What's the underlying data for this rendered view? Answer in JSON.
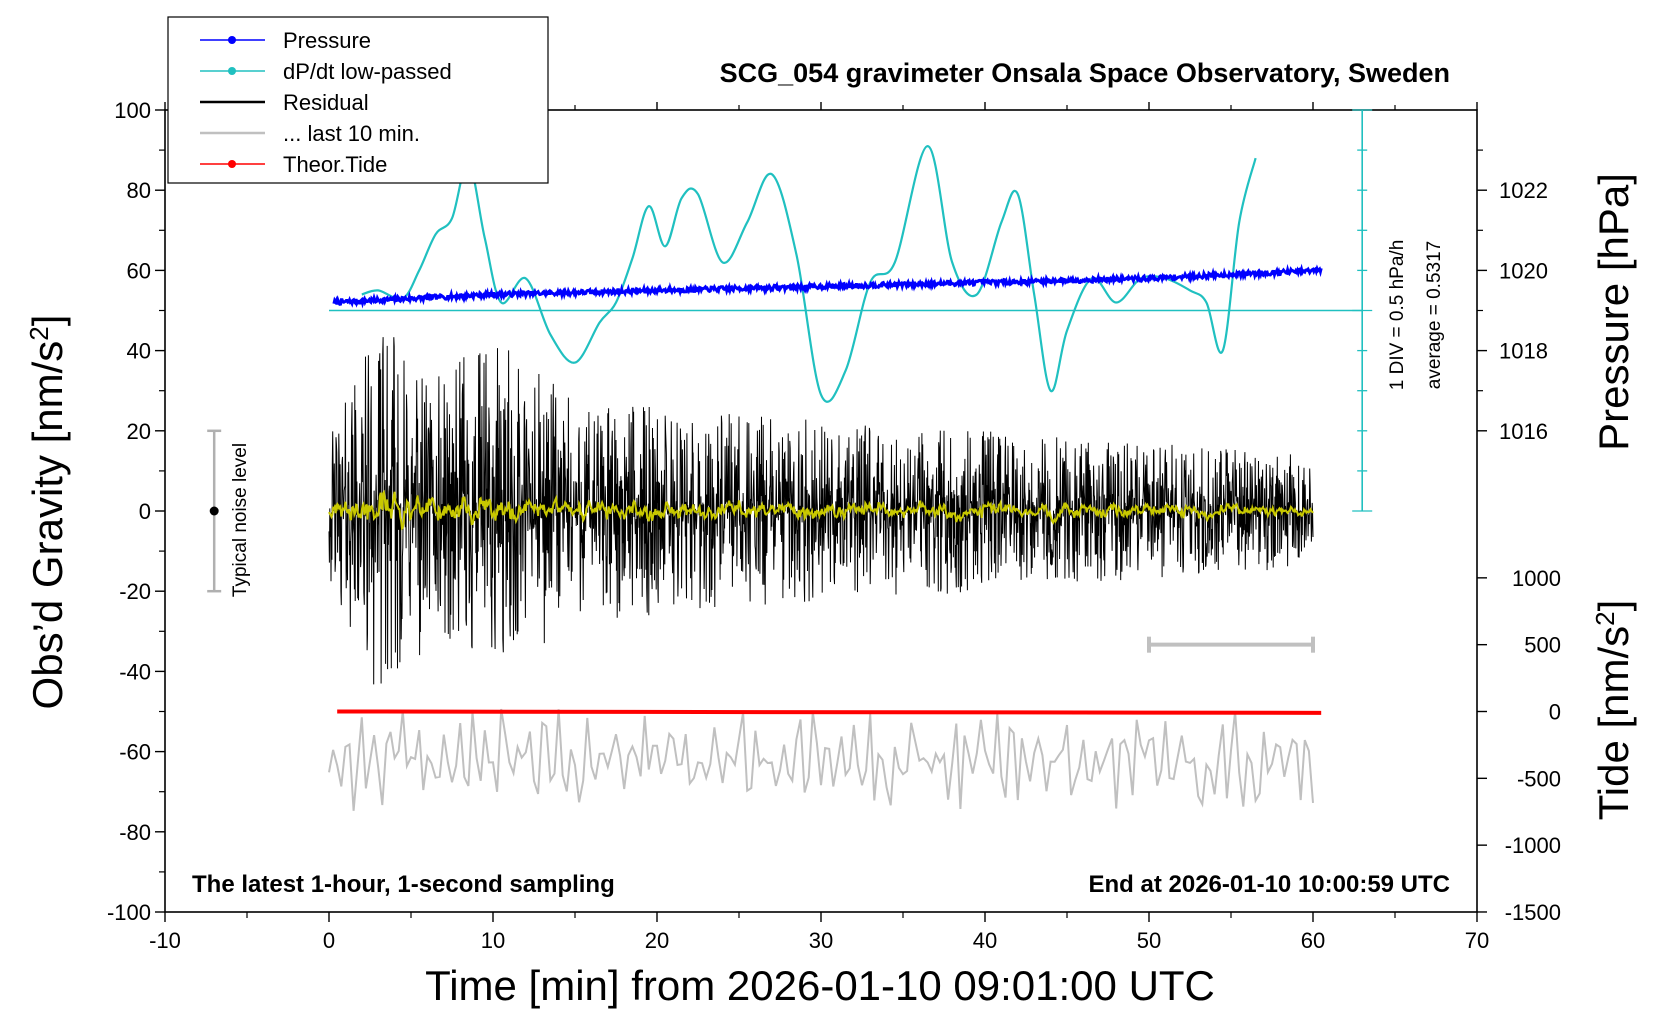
{
  "chart_data": {
    "type": "line",
    "title": "SCG_054 gravimeter Onsala Space Observatory, Sweden",
    "xlabel": "Time [min] from 2026-01-10 09:01:00 UTC",
    "ylabel_main": "Obs’d Gravity [nm/s",
    "ylabel_main_sup": "2",
    "ylabel_main_end": "]",
    "ylabel_pressure": "Pressure [hPa]",
    "ylabel_tide": "Tide [nm/s",
    "ylabel_tide_sup": "2",
    "ylabel_tide_end": "]",
    "xlim": [
      -10,
      70
    ],
    "ylim": [
      -100,
      100
    ],
    "xticks": [
      "-10",
      "0",
      "10",
      "20",
      "30",
      "40",
      "50",
      "60",
      "70"
    ],
    "yticks": [
      "-100",
      "-80",
      "-60",
      "-40",
      "-20",
      "0",
      "20",
      "40",
      "60",
      "80",
      "100"
    ],
    "pressure_axis": {
      "ticks": [
        "1016",
        "1018",
        "1020",
        "1022"
      ],
      "values": [
        1016,
        1018,
        1020,
        1022
      ],
      "gravity_equiv_at_1016": 20,
      "gravity_per_hpa": 10
    },
    "tide_axis": {
      "ticks": [
        "1000",
        "500",
        "0",
        "-500",
        "-1000",
        "-1500"
      ],
      "values": [
        1000,
        500,
        0,
        -500,
        -1000,
        -1500
      ],
      "gravity_equiv_at_0": -50,
      "gravity_per_unit": 0.03333
    },
    "legend": [
      {
        "label": "Pressure",
        "color": "#0000ff",
        "marker": true
      },
      {
        "label": "dP/dt low-passed",
        "color": "#20c0c0",
        "marker": true
      },
      {
        "label": "Residual",
        "color": "#000000",
        "marker": false
      },
      {
        "label": "... last 10 min.",
        "color": "#c0c0c0",
        "marker": false
      },
      {
        "label": "Theor.Tide",
        "color": "#ff0000",
        "marker": true
      }
    ],
    "dpdt_scale_label": "1 DIV = 0.5 hPa/h",
    "dpdt_average_label": "average = 0.5317",
    "dpdt_baseline_gravity": 50,
    "noise_label": "Typical noise level",
    "noise_range": [
      -20,
      20
    ],
    "footnote_left": "The latest 1-hour, 1-second sampling",
    "footnote_right": "End at 2026-01-10 10:00:59 UTC",
    "series": [
      {
        "name": "Pressure",
        "color": "#0000ff",
        "units": "hPa",
        "x": [
          0.3,
          5,
          10,
          15,
          20,
          25,
          30,
          35,
          40,
          45,
          50,
          55,
          60.5
        ],
        "values": [
          1019.2,
          1019.3,
          1019.4,
          1019.45,
          1019.5,
          1019.55,
          1019.6,
          1019.65,
          1019.7,
          1019.75,
          1019.8,
          1019.9,
          1020.0
        ]
      },
      {
        "name": "dP/dt low-passed",
        "color": "#20c0c0",
        "units": "gravity-axis",
        "x": [
          2.0,
          3.0,
          4.5,
          5.5,
          6.5,
          7.5,
          8.5,
          9.5,
          10.5,
          12.0,
          13.5,
          15.0,
          16.5,
          17.5,
          18.5,
          19.5,
          20.5,
          21.5,
          22.5,
          24.0,
          25.5,
          27.0,
          28.5,
          30.0,
          31.5,
          33.0,
          34.5,
          36.5,
          38.0,
          39.5,
          41.0,
          42.0,
          43.0,
          44.0,
          45.0,
          46.5,
          48.0,
          49.5,
          51.0,
          52.5,
          53.5,
          54.5,
          55.5,
          56.5
        ],
        "values": [
          54,
          55,
          53,
          60,
          69,
          73,
          87,
          68,
          52,
          58,
          44,
          37,
          47,
          52,
          63,
          76,
          66,
          78,
          79,
          62,
          72,
          84,
          64,
          29,
          35,
          57,
          62,
          91,
          62,
          54,
          72,
          79,
          54,
          30,
          45,
          58,
          52,
          58,
          58,
          55,
          52,
          40,
          72,
          88
        ]
      },
      {
        "name": "Residual",
        "color": "#000000",
        "x_start": 0,
        "x_end": 60,
        "envelope": [
          [
            0,
            18
          ],
          [
            3,
            48
          ],
          [
            6,
            35
          ],
          [
            10.5,
            42
          ],
          [
            15,
            28
          ],
          [
            25,
            24
          ],
          [
            40,
            20
          ],
          [
            60,
            14
          ]
        ]
      },
      {
        "name": "... last 10 min.",
        "color": "#c0c0c0",
        "x_start": 0,
        "x_end": 60,
        "center": -62,
        "amplitude": 10
      },
      {
        "name": "Theor.Tide",
        "color": "#ff0000",
        "units": "nm/s2",
        "x": [
          0.5,
          60.5
        ],
        "values": [
          0,
          -10
        ]
      }
    ],
    "scale_bar_minutes": [
      50,
      60
    ]
  }
}
